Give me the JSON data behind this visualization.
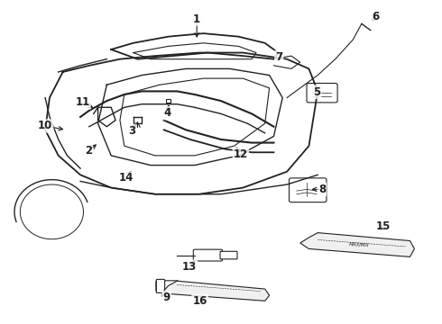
{
  "background_color": "#ffffff",
  "fig_width": 4.9,
  "fig_height": 3.6,
  "dpi": 100,
  "line_color": "#222222",
  "label_fontsize": 8.5,
  "label_fontweight": "bold",
  "label_positions": {
    "1": [
      0.445,
      0.945,
      0.445,
      0.878
    ],
    "2": [
      0.198,
      0.535,
      0.222,
      0.56
    ],
    "3": [
      0.298,
      0.597,
      0.31,
      0.63
    ],
    "4": [
      0.378,
      0.652,
      0.382,
      0.687
    ],
    "5": [
      0.718,
      0.718,
      0.718,
      0.74
    ],
    "6": [
      0.852,
      0.952,
      0.84,
      0.93
    ],
    "7": [
      0.632,
      0.826,
      0.648,
      0.818
    ],
    "8": [
      0.73,
      0.415,
      0.7,
      0.415
    ],
    "9": [
      0.376,
      0.078,
      0.372,
      0.095
    ],
    "10": [
      0.1,
      0.612,
      0.148,
      0.6
    ],
    "11": [
      0.185,
      0.685,
      0.215,
      0.665
    ],
    "12": [
      0.545,
      0.525,
      0.53,
      0.555
    ],
    "13": [
      0.428,
      0.175,
      0.448,
      0.2
    ],
    "14": [
      0.284,
      0.45,
      0.3,
      0.48
    ],
    "15": [
      0.87,
      0.3,
      0.87,
      0.278
    ],
    "16": [
      0.452,
      0.068,
      0.468,
      0.09
    ]
  }
}
